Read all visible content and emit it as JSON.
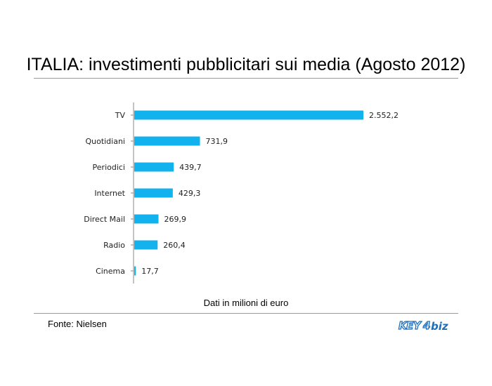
{
  "header": {
    "title": "ITALIA: investimenti pubblicitari sui media (Agosto 2012)"
  },
  "footer": {
    "units_note": "Dati in milioni di euro",
    "source": "Fonte: Nielsen",
    "logo_text": "KEY4biz"
  },
  "colors": {
    "bar": "#12B2EE",
    "axis": "#888888",
    "rule": "#9a9a9a",
    "logo_blue": "#1e6fb8"
  },
  "chart_data": {
    "type": "bar",
    "orientation": "horizontal",
    "categories": [
      "TV",
      "Quotidiani",
      "Periodici",
      "Internet",
      "Direct Mail",
      "Radio",
      "Cinema"
    ],
    "values": [
      2552.2,
      731.9,
      439.7,
      429.3,
      269.9,
      260.4,
      17.7
    ],
    "value_labels": [
      "2.552,2",
      "731,9",
      "439,7",
      "429,3",
      "269,9",
      "260,4",
      "17,7"
    ],
    "title": "ITALIA: investimenti pubblicitari sui media (Agosto 2012)",
    "xlabel": "Dati in milioni di euro",
    "ylabel": "",
    "xlim": [
      0,
      2552.2
    ],
    "grid": false,
    "legend": "none"
  }
}
